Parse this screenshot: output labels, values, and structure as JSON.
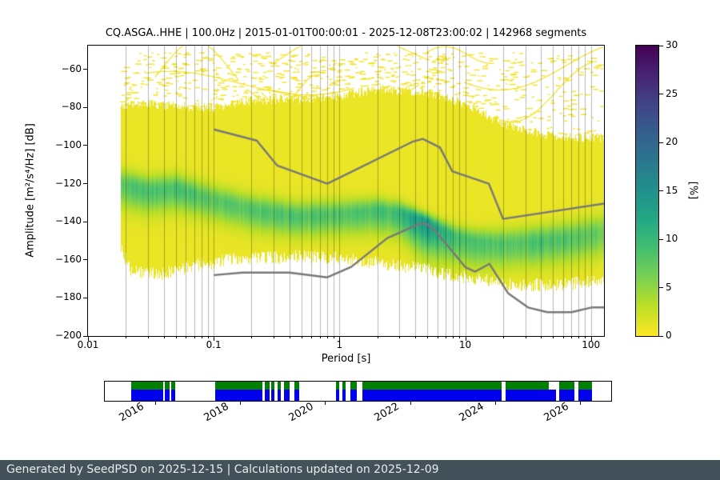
{
  "title": "CQ.ASGA..HHE | 100.0Hz | 2015-01-01T00:00:01 - 2025-12-08T23:00:02 | 142968 segments",
  "footer": {
    "text": "Generated by SeedPSD on 2025-12-15 | Calculations updated on 2025-12-09"
  },
  "colors": {
    "footer_bg": "#42515a",
    "footer_text": "#ececec",
    "availability_green": "#008000",
    "availability_blue": "#0000ee",
    "noise_model_line": "#787878",
    "gridline": "rgba(0,0,0,0.28)",
    "speckle_yellow": "#f2e426"
  },
  "chart_data": {
    "type": "heatmap",
    "title": "CQ.ASGA..HHE | 100.0Hz | 2015-01-01T00:00:01 - 2025-12-08T23:00:02 | 142968 segments",
    "xlabel": "Period [s]",
    "ylabel": "Amplitude [m²/s⁴/Hz] [dB]",
    "xscale": "log",
    "xlim": [
      0.01,
      127
    ],
    "ylim": [
      -200,
      -47.5
    ],
    "x_ticks": [
      0.01,
      0.1,
      1,
      10,
      100
    ],
    "x_tick_labels": [
      "0.01",
      "0.1",
      "1",
      "10",
      "100"
    ],
    "y_ticks": [
      -60,
      -80,
      -100,
      -120,
      -140,
      -160,
      -180,
      -200
    ],
    "y_tick_labels": [
      "−60",
      "−80",
      "−100",
      "−120",
      "−140",
      "−160",
      "−180",
      "−200"
    ],
    "grid": "vertical-log-minor-and-major",
    "colorbar": {
      "label": "[%]",
      "min": 0,
      "max": 30,
      "ticks": [
        0,
        5,
        10,
        15,
        20,
        25,
        30
      ],
      "tick_labels": [
        "0",
        "5",
        "10",
        "15",
        "20",
        "25",
        "30"
      ],
      "colormap": "viridis_r",
      "stops": [
        [
          0.0,
          "#440154"
        ],
        [
          0.1,
          "#482475"
        ],
        [
          0.2,
          "#414487"
        ],
        [
          0.3,
          "#355f8d"
        ],
        [
          0.4,
          "#2a788e"
        ],
        [
          0.5,
          "#21918c"
        ],
        [
          0.6,
          "#22a884"
        ],
        [
          0.7,
          "#44bf70"
        ],
        [
          0.8,
          "#7ad151"
        ],
        [
          0.9,
          "#bddf26"
        ],
        [
          1.0,
          "#fde725"
        ]
      ]
    },
    "histogram": {
      "description": "PPSD probability histogram, percent per (period, dB) bin; band estimates read from plot",
      "period_range": [
        0.018,
        127
      ],
      "base_percent": 0.9,
      "mode_curve": [
        [
          0.018,
          -120
        ],
        [
          0.03,
          -123.5
        ],
        [
          0.05,
          -122.5
        ],
        [
          0.1,
          -128.5
        ],
        [
          0.2,
          -133.5
        ],
        [
          0.45,
          -137
        ],
        [
          1.0,
          -136
        ],
        [
          2.0,
          -134
        ],
        [
          3.0,
          -135.5
        ],
        [
          4.5,
          -139
        ],
        [
          6.0,
          -143.5
        ],
        [
          8.0,
          -147.5
        ],
        [
          12,
          -150.5
        ],
        [
          20,
          -151.5
        ],
        [
          35,
          -150.5
        ],
        [
          70,
          -148.5
        ],
        [
          127,
          -145.5
        ]
      ],
      "peak_percent": [
        [
          0.018,
          8
        ],
        [
          0.05,
          9
        ],
        [
          0.1,
          7.5
        ],
        [
          0.3,
          8.5
        ],
        [
          1,
          8
        ],
        [
          2.5,
          9
        ],
        [
          4,
          13
        ],
        [
          5,
          15
        ],
        [
          6,
          12
        ],
        [
          8,
          9.5
        ],
        [
          12,
          8.5
        ],
        [
          20,
          8
        ],
        [
          40,
          8.5
        ],
        [
          70,
          8
        ],
        [
          127,
          7
        ]
      ],
      "spread_up": [
        [
          0.018,
          5
        ],
        [
          0.1,
          5
        ],
        [
          1,
          5
        ],
        [
          3,
          4
        ],
        [
          4.5,
          3
        ],
        [
          8,
          4
        ],
        [
          20,
          5
        ],
        [
          127,
          6
        ]
      ],
      "spread_down": [
        [
          0.018,
          8
        ],
        [
          0.1,
          7
        ],
        [
          1,
          7
        ],
        [
          3,
          8
        ],
        [
          4.5,
          11
        ],
        [
          8,
          9
        ],
        [
          20,
          8
        ],
        [
          127,
          8
        ]
      ],
      "top_edge": [
        [
          0.018,
          -79
        ],
        [
          0.03,
          -78
        ],
        [
          0.05,
          -79
        ],
        [
          0.1,
          -80
        ],
        [
          0.2,
          -76
        ],
        [
          0.5,
          -75
        ],
        [
          1,
          -74
        ],
        [
          2,
          -70
        ],
        [
          5,
          -72
        ],
        [
          10,
          -78
        ],
        [
          20,
          -88
        ],
        [
          40,
          -94
        ],
        [
          127,
          -96
        ]
      ],
      "bottom_edge": [
        [
          0.018,
          -153
        ],
        [
          0.022,
          -166
        ],
        [
          0.04,
          -167
        ],
        [
          0.07,
          -163
        ],
        [
          0.15,
          -159
        ],
        [
          0.5,
          -158
        ],
        [
          1,
          -159
        ],
        [
          2,
          -161
        ],
        [
          4,
          -164
        ],
        [
          7,
          -167
        ],
        [
          12,
          -170
        ],
        [
          25,
          -173
        ],
        [
          60,
          -173
        ],
        [
          127,
          -170
        ]
      ],
      "artifacts": {
        "seed": 7,
        "dash_count": 800,
        "arc_count": 12
      }
    },
    "noise_models": {
      "high_noise_model": [
        [
          0.1,
          -91.5
        ],
        [
          0.22,
          -97.4
        ],
        [
          0.32,
          -110.5
        ],
        [
          0.8,
          -120.0
        ],
        [
          3.8,
          -98.0
        ],
        [
          4.6,
          -96.5
        ],
        [
          6.3,
          -101.0
        ],
        [
          7.9,
          -113.5
        ],
        [
          15.4,
          -120.0
        ],
        [
          20.0,
          -138.5
        ],
        [
          354.8,
          -126.0
        ]
      ],
      "low_noise_model": [
        [
          0.1,
          -168.0
        ],
        [
          0.17,
          -166.7
        ],
        [
          0.4,
          -166.7
        ],
        [
          0.8,
          -169.2
        ],
        [
          1.24,
          -163.7
        ],
        [
          2.4,
          -148.6
        ],
        [
          4.3,
          -141.1
        ],
        [
          5.0,
          -141.1
        ],
        [
          6.0,
          -146.0
        ],
        [
          10.0,
          -163.8
        ],
        [
          12.0,
          -166.2
        ],
        [
          15.6,
          -162.1
        ],
        [
          21.9,
          -177.5
        ],
        [
          31.6,
          -185.0
        ],
        [
          45.0,
          -187.5
        ],
        [
          70.0,
          -187.5
        ],
        [
          101.0,
          -185.0
        ],
        [
          154.0,
          -185.0
        ],
        [
          328.0,
          -187.5
        ]
      ]
    }
  },
  "availability": {
    "year_range": [
      2014.8,
      2026.75
    ],
    "tick_years": [
      2016,
      2018,
      2020,
      2022,
      2024,
      2026
    ],
    "tick_year_labels": [
      "2016",
      "2018",
      "2020",
      "2022",
      "2024",
      "2026"
    ],
    "segments": [
      [
        2015.42,
        2016.17
      ],
      [
        2016.21,
        2016.32
      ],
      [
        2016.36,
        2016.46
      ],
      [
        2017.4,
        2018.51
      ],
      [
        2018.58,
        2018.68
      ],
      [
        2018.73,
        2018.81
      ],
      [
        2018.88,
        2018.96
      ],
      [
        2019.03,
        2019.17
      ],
      [
        2019.28,
        2019.39
      ],
      [
        2020.26,
        2020.33
      ],
      [
        2020.41,
        2020.48
      ],
      [
        2020.6,
        2020.75
      ],
      [
        2020.88,
        2024.17
      ],
      [
        2024.25,
        2025.45
      ],
      [
        2025.53,
        2025.88
      ],
      [
        2025.98,
        2026.3
      ]
    ],
    "green_gaps": [
      [
        2025.28,
        2025.45
      ]
    ]
  }
}
